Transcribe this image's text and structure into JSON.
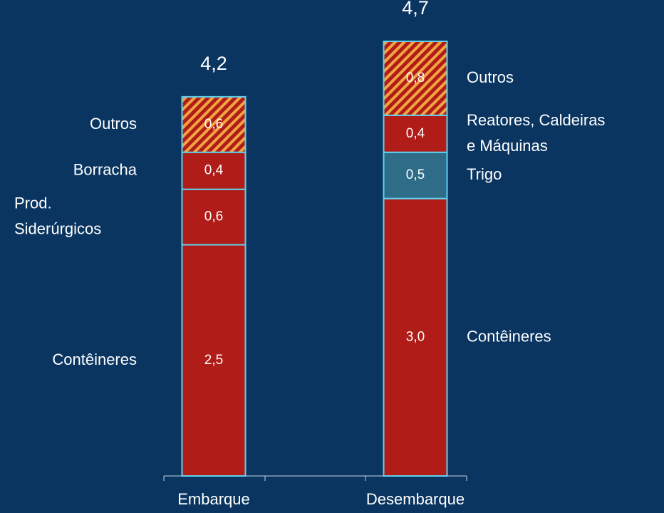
{
  "chart_data": {
    "type": "stacked_bar",
    "categories": [
      "Embarque",
      "Desembarque"
    ],
    "totals": [
      4.2,
      4.7
    ],
    "total_labels": [
      "4,2",
      "4,7"
    ],
    "stacks": [
      {
        "label_side": "left",
        "segments": [
          {
            "name": [
              "Contêineres"
            ],
            "value": 2.5,
            "value_label": "2,5",
            "color": "#b01c17"
          },
          {
            "name": [
              "Prod.",
              "Siderúrgicos"
            ],
            "value": 0.6,
            "value_label": "0,6",
            "color": "#b01c17"
          },
          {
            "name": [
              "Borracha"
            ],
            "value": 0.4,
            "value_label": "0,4",
            "color": "#b01c17"
          },
          {
            "name": [
              "Outros"
            ],
            "value": 0.6,
            "value_label": "0,6",
            "color": "#b01c17",
            "hatch_color": "#f2a443"
          }
        ]
      },
      {
        "label_side": "right",
        "segments": [
          {
            "name": [
              "Contêineres"
            ],
            "value": 3.0,
            "value_label": "3,0",
            "color": "#b01c17"
          },
          {
            "name": [
              "Trigo"
            ],
            "value": 0.5,
            "value_label": "0,5",
            "color": "#2e6c88"
          },
          {
            "name": [
              "Reatores, Caldeiras",
              "e Máquinas"
            ],
            "value": 0.4,
            "value_label": "0,4",
            "color": "#b01c17"
          },
          {
            "name": [
              "Outros"
            ],
            "value": 0.8,
            "value_label": "0,8",
            "color": "#b01c17",
            "hatch_color": "#f2a443"
          }
        ]
      }
    ]
  }
}
